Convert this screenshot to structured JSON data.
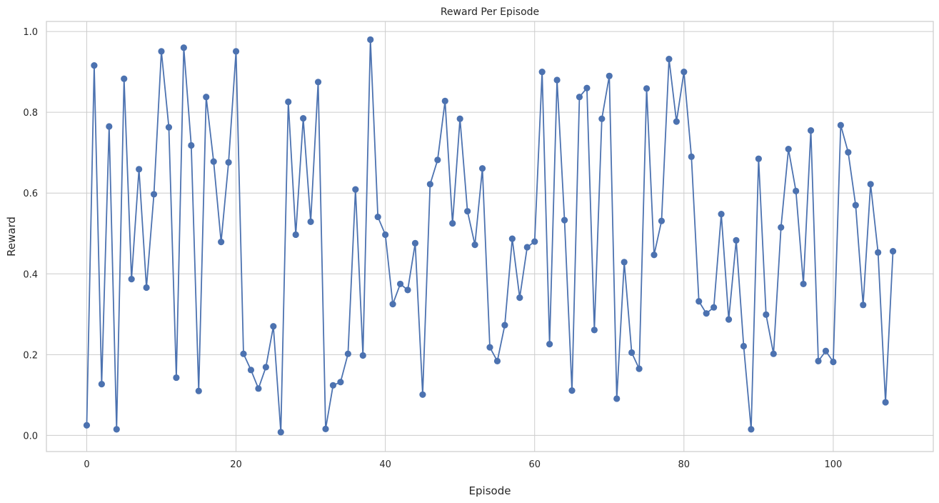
{
  "chart_data": {
    "type": "line",
    "title": "Reward Per Episode",
    "xlabel": "Episode",
    "ylabel": "Reward",
    "xlim": [
      -5.4,
      113.4
    ],
    "ylim": [
      -0.04,
      1.025
    ],
    "xticks": [
      0,
      20,
      40,
      60,
      80,
      100
    ],
    "yticks": [
      0.0,
      0.2,
      0.4,
      0.6,
      0.8,
      1.0
    ],
    "ytick_labels": [
      "0.0",
      "0.2",
      "0.4",
      "0.6",
      "0.8",
      "1.0"
    ],
    "grid": true,
    "marker": "circle",
    "color": "#4c72b0",
    "series": [
      {
        "values": [
          0.025,
          0.916,
          0.127,
          0.765,
          0.015,
          0.883,
          0.387,
          0.659,
          0.366,
          0.597,
          0.951,
          0.763,
          0.143,
          0.96,
          0.718,
          0.11,
          0.838,
          0.678,
          0.479,
          0.676,
          0.951,
          0.202,
          0.162,
          0.116,
          0.169,
          0.27,
          0.008,
          0.826,
          0.497,
          0.785,
          0.529,
          0.875,
          0.016,
          0.124,
          0.132,
          0.202,
          0.609,
          0.198,
          0.98,
          0.541,
          0.497,
          0.325,
          0.375,
          0.36,
          0.476,
          0.101,
          0.622,
          0.682,
          0.828,
          0.525,
          0.784,
          0.555,
          0.472,
          0.661,
          0.218,
          0.184,
          0.273,
          0.487,
          0.341,
          0.466,
          0.48,
          0.9,
          0.226,
          0.88,
          0.533,
          0.111,
          0.838,
          0.86,
          0.261,
          0.784,
          0.89,
          0.091,
          0.429,
          0.205,
          0.165,
          0.859,
          0.447,
          0.531,
          0.932,
          0.777,
          0.9,
          0.69,
          0.332,
          0.302,
          0.317,
          0.548,
          0.287,
          0.483,
          0.221,
          0.015,
          0.685,
          0.299,
          0.202,
          0.515,
          0.709,
          0.605,
          0.375,
          0.755,
          0.184,
          0.209,
          0.182,
          0.768,
          0.701,
          0.57,
          0.323,
          0.622,
          0.453,
          0.082,
          0.456
        ]
      }
    ]
  }
}
